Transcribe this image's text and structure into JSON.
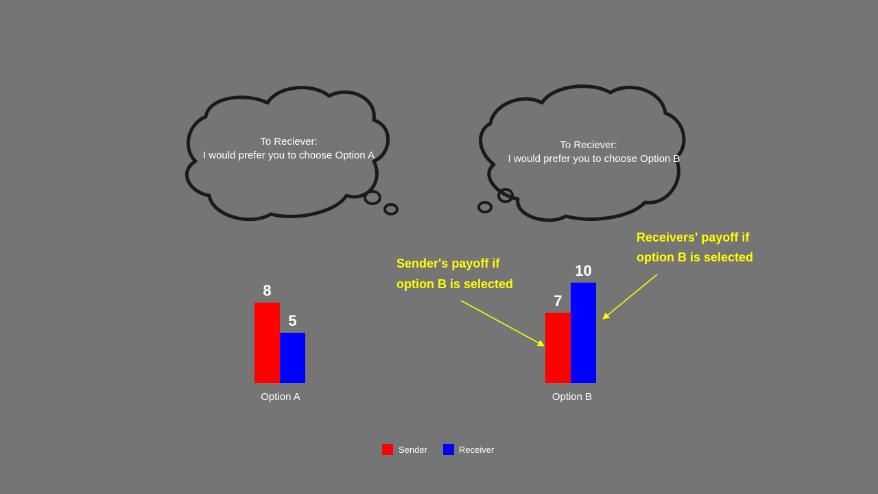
{
  "thoughts": [
    {
      "line1": "To Reciever:",
      "line2": "I would prefer you to choose Option A"
    },
    {
      "line1": "To Reciever:",
      "line2": "I would prefer you to choose Option B"
    }
  ],
  "annotations": {
    "sender": [
      "Sender's payoff if",
      "option B is selected"
    ],
    "receiver": [
      "Receivers' payoff if",
      "option B is selected"
    ]
  },
  "colors": {
    "background": "#757575",
    "sender": "#ff0000",
    "receiver": "#0000ff",
    "annotation": "#ffff00"
  },
  "chart_data": {
    "type": "bar",
    "categories": [
      "Option A",
      "Option B"
    ],
    "series": [
      {
        "name": "Sender",
        "values": [
          8,
          7
        ],
        "color": "#ff0000"
      },
      {
        "name": "Receiver",
        "values": [
          5,
          10
        ],
        "color": "#0000ff"
      }
    ],
    "legend": "bottom",
    "grid": false
  }
}
